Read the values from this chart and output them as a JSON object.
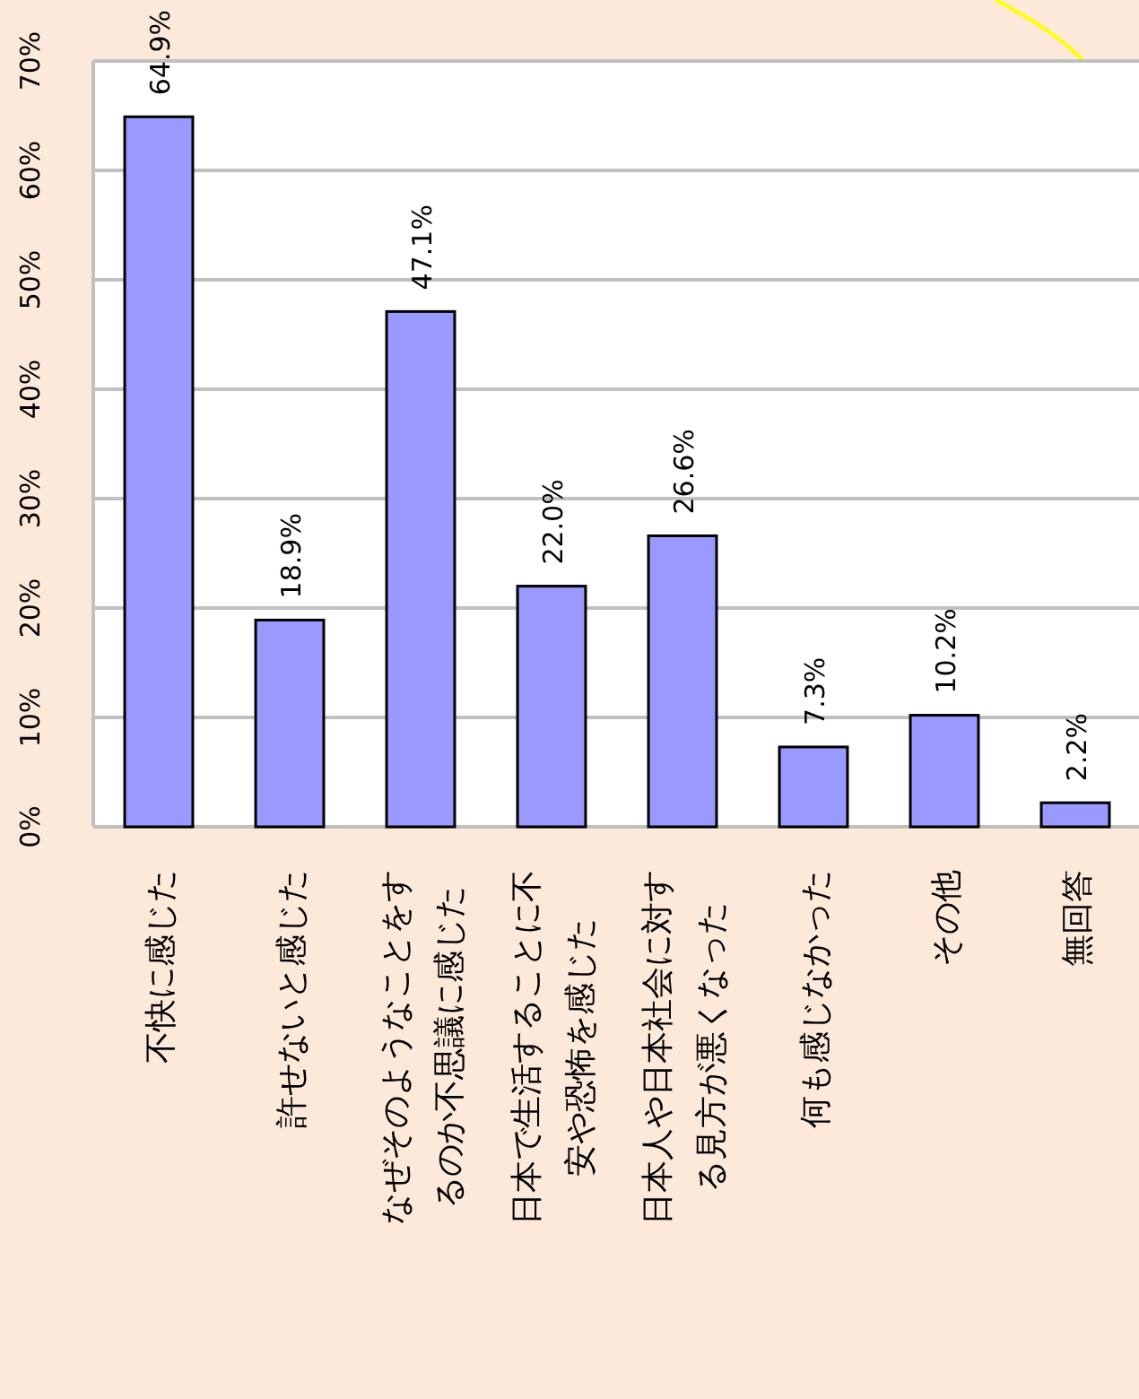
{
  "chart_data": {
    "type": "bar",
    "categories": [
      "不快に感じた",
      "許せないと感じた",
      "なぜそのようなことをするのか不思議に感じた",
      "日本で生活することに不安や恐怖を感じた",
      "日本人や日本社会に対する見方が悪くなった",
      "何も感じなかった",
      "その他",
      "無回答"
    ],
    "values": [
      64.9,
      18.9,
      47.1,
      22.0,
      26.6,
      7.3,
      10.2,
      2.2
    ],
    "value_labels": [
      "64.9%",
      "18.9%",
      "47.1%",
      "22.0%",
      "26.6%",
      "7.3%",
      "10.2%",
      "2.2%"
    ],
    "color": "#9999ff",
    "ylim": [
      0,
      70
    ],
    "yticks": [
      {
        "value": 0,
        "label": "0%"
      },
      {
        "value": 10,
        "label": "10%"
      },
      {
        "value": 20,
        "label": "20%"
      },
      {
        "value": 30,
        "label": "30%"
      },
      {
        "value": 40,
        "label": "40%"
      },
      {
        "value": 50,
        "label": "50%"
      },
      {
        "value": 60,
        "label": "60%"
      },
      {
        "value": 70,
        "label": "70%"
      }
    ],
    "grid": "y"
  }
}
